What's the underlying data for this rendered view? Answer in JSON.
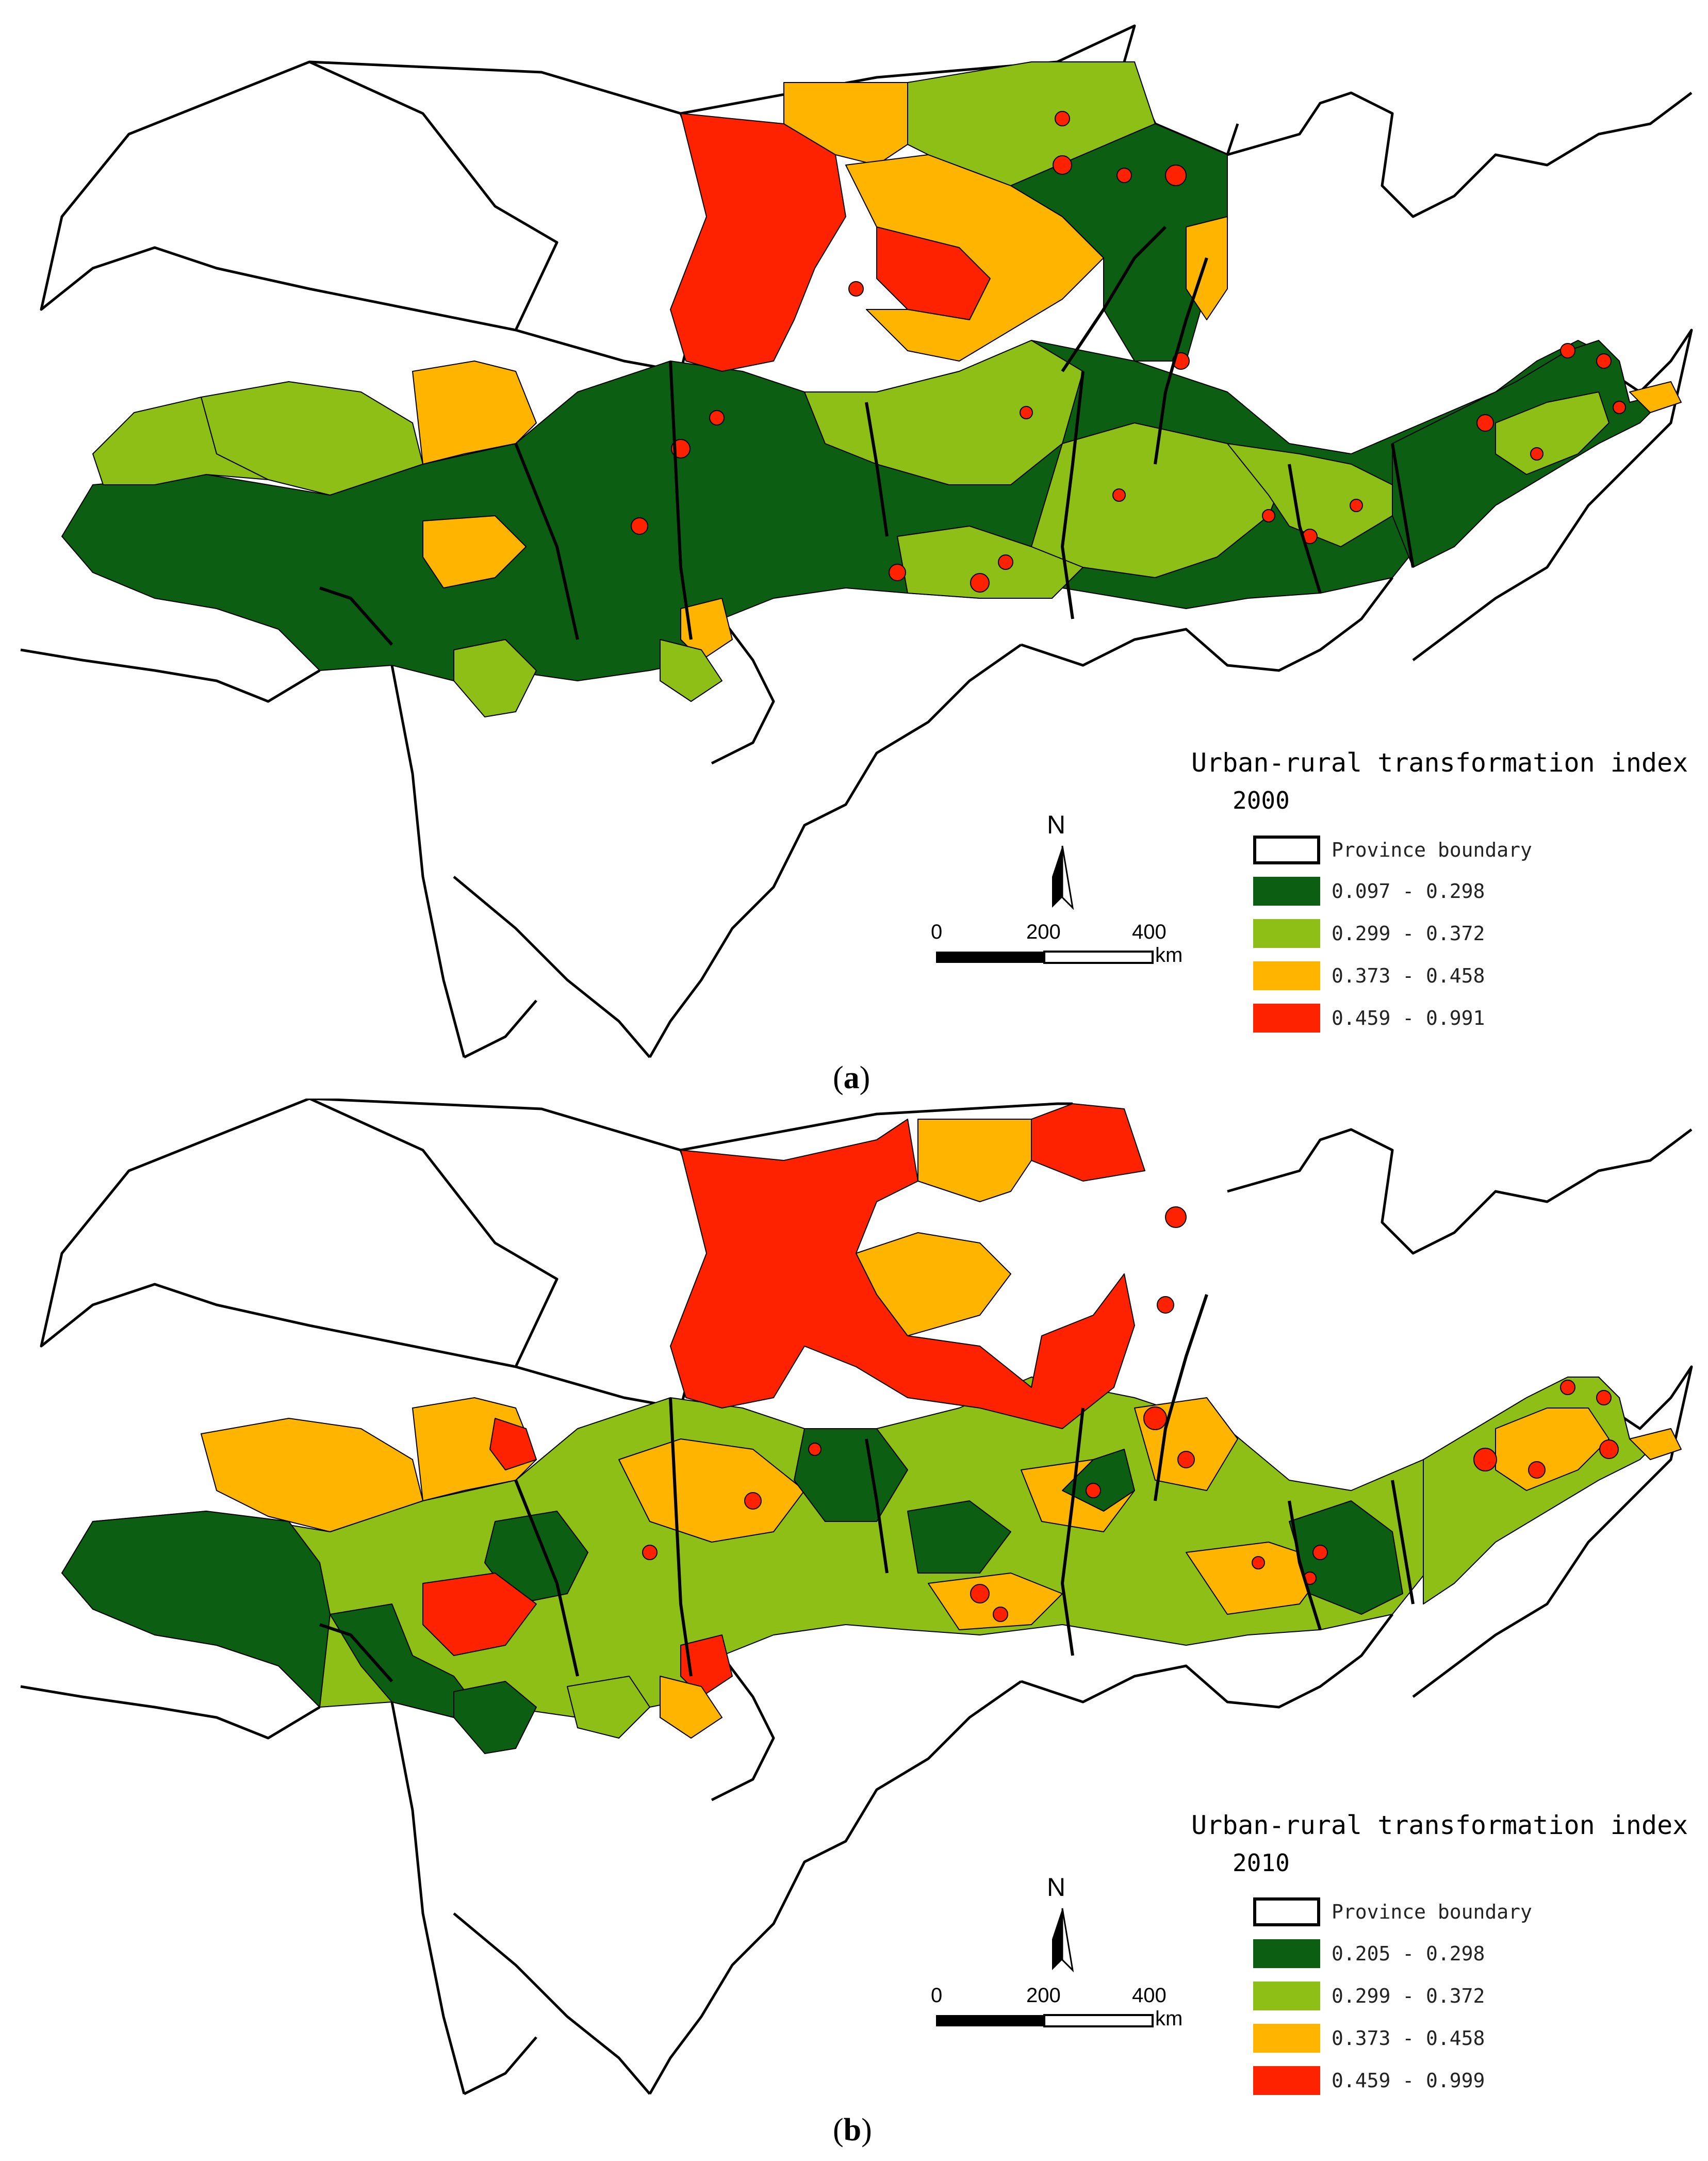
{
  "colors": {
    "class1": "#0b5e12",
    "class2": "#8dbf16",
    "class3": "#ffb400",
    "class4": "#ff2200",
    "boundary": "#000000",
    "background": "#ffffff"
  },
  "panels": [
    {
      "label_open": "(",
      "label_letter": "a",
      "label_close": ")",
      "legend": {
        "title": "Urban-rural transformation index",
        "year": "2000",
        "boundary_label": "Province boundary",
        "classes": [
          {
            "label": "0.097 - 0.298",
            "color": "#0b5e12"
          },
          {
            "label": "0.299 - 0.372",
            "color": "#8dbf16"
          },
          {
            "label": "0.373 - 0.458",
            "color": "#ffb400"
          },
          {
            "label": "0.459 - 0.991",
            "color": "#ff2200"
          }
        ]
      },
      "north_label": "N",
      "scale": {
        "ticks": [
          "0",
          "200",
          "400"
        ],
        "unit": "km"
      }
    },
    {
      "label_open": "(",
      "label_letter": "b",
      "label_close": ")",
      "legend": {
        "title": "Urban-rural transformation index",
        "year": "2010",
        "boundary_label": "Province boundary",
        "classes": [
          {
            "label": "0.205 - 0.298",
            "color": "#0b5e12"
          },
          {
            "label": "0.299 - 0.372",
            "color": "#8dbf16"
          },
          {
            "label": "0.373 - 0.458",
            "color": "#ffb400"
          },
          {
            "label": "0.459 - 0.999",
            "color": "#ff2200"
          }
        ]
      },
      "north_label": "N",
      "scale": {
        "ticks": [
          "0",
          "200",
          "400"
        ],
        "unit": "km"
      }
    }
  ]
}
